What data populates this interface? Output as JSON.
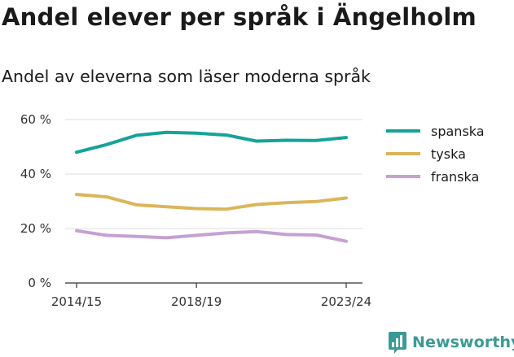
{
  "chart_data": {
    "type": "line",
    "title": "Andel elever per språk i Ängelholm",
    "subtitle": "Andel av eleverna som läser moderna språk",
    "xlabel": "",
    "ylabel": "",
    "x": [
      "2014/15",
      "2015/16",
      "2016/17",
      "2017/18",
      "2018/19",
      "2019/20",
      "2020/21",
      "2021/22",
      "2022/23",
      "2023/24"
    ],
    "x_tick_labels": [
      "2014/15",
      "2018/19",
      "2023/24"
    ],
    "y_ticks": [
      0,
      20,
      40,
      60
    ],
    "y_tick_labels": [
      "0 %",
      "20 %",
      "40 %",
      "60 %"
    ],
    "ylim": [
      0,
      60
    ],
    "grid": true,
    "legend": "right",
    "series": [
      {
        "name": "spanska",
        "color": "#14a398",
        "values": [
          48.0,
          50.8,
          54.2,
          55.3,
          55.0,
          54.3,
          52.1,
          52.4,
          52.3,
          53.4
        ]
      },
      {
        "name": "tyska",
        "color": "#dbb55a",
        "values": [
          32.5,
          31.6,
          28.7,
          28.0,
          27.3,
          27.1,
          28.8,
          29.5,
          29.9,
          31.2
        ]
      },
      {
        "name": "franska",
        "color": "#c6a0d2",
        "values": [
          19.2,
          17.5,
          17.1,
          16.6,
          17.5,
          18.4,
          18.9,
          17.8,
          17.6,
          15.3
        ]
      }
    ]
  },
  "brand": {
    "name": "Newsworthy",
    "icon": "bar-chart-logo-icon"
  }
}
